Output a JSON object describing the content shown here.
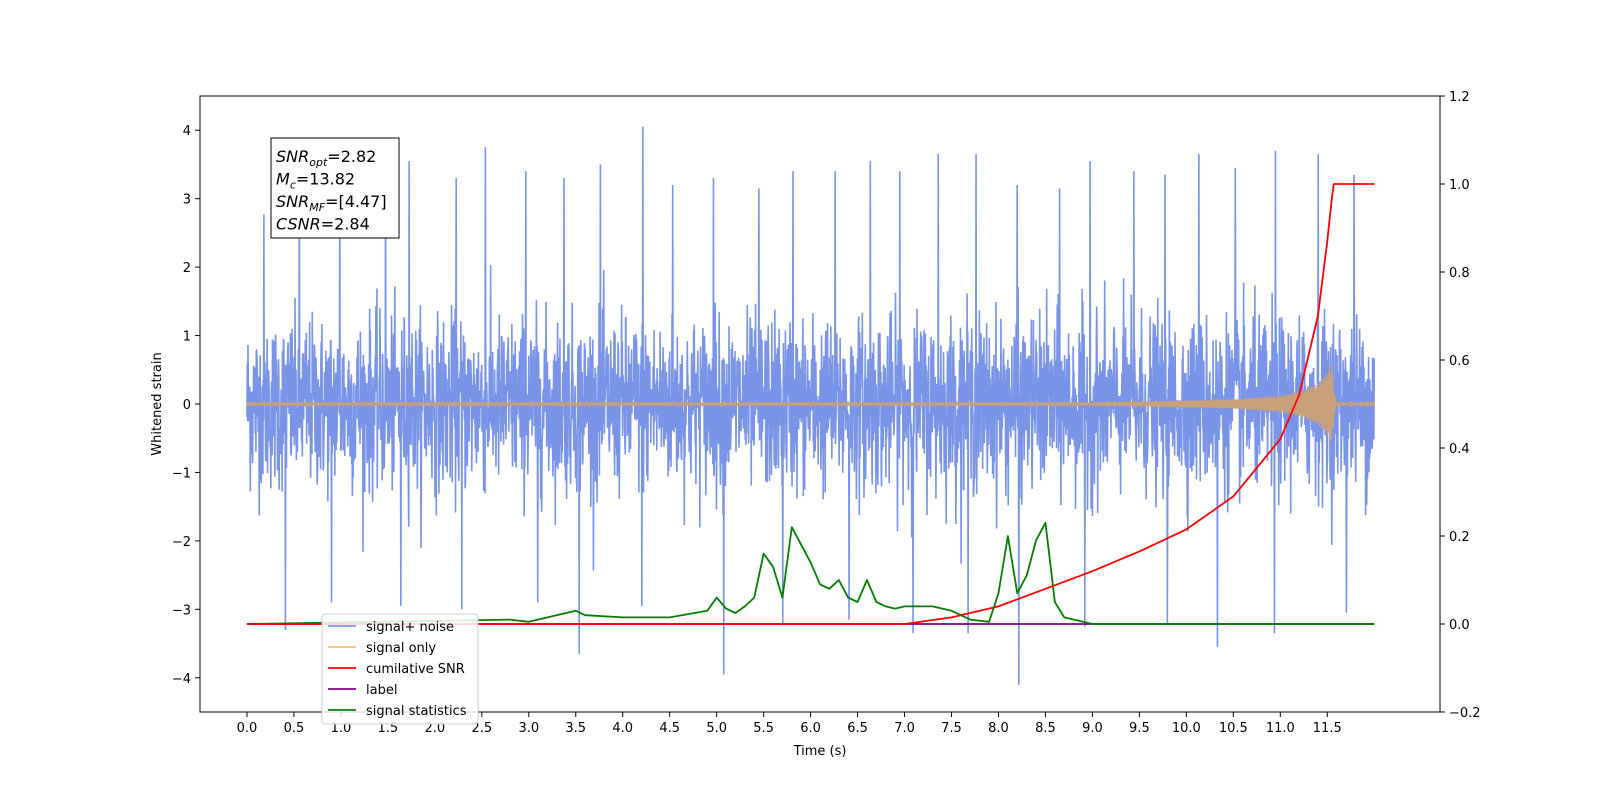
{
  "chart_data": {
    "type": "line",
    "xlabel": "Time (s)",
    "ylabel": "Whitened strain",
    "xlim": [
      -0.5,
      12.7
    ],
    "ylim": [
      -4.5,
      4.5
    ],
    "y2lim": [
      -0.2,
      1.2
    ],
    "x_ticks": [
      0.0,
      0.5,
      1.0,
      1.5,
      2.0,
      2.5,
      3.0,
      3.5,
      4.0,
      4.5,
      5.0,
      5.5,
      6.0,
      6.5,
      7.0,
      7.5,
      8.0,
      8.5,
      9.0,
      9.5,
      10.0,
      10.5,
      11.0,
      11.5
    ],
    "x_tick_labels": [
      "0.0",
      "0.5",
      "1.0",
      "1.5",
      "2.0",
      "2.5",
      "3.0",
      "3.5",
      "4.0",
      "4.5",
      "5.0",
      "5.5",
      "6.0",
      "6.5",
      "7.0",
      "7.5",
      "8.0",
      "8.5",
      "9.0",
      "9.5",
      "10.0",
      "10.5",
      "11.0",
      "11.5"
    ],
    "y_ticks": [
      -4,
      -3,
      -2,
      -1,
      0,
      1,
      2,
      3,
      4
    ],
    "y_tick_labels": [
      "−4",
      "−3",
      "−2",
      "−1",
      "0",
      "1",
      "2",
      "3",
      "4"
    ],
    "y2_ticks": [
      -0.2,
      0.0,
      0.2,
      0.4,
      0.6,
      0.8,
      1.0,
      1.2
    ],
    "y2_tick_labels": [
      "−0.2",
      "0.0",
      "0.2",
      "0.4",
      "0.6",
      "0.8",
      "1.0",
      "1.2"
    ],
    "grid": false,
    "legend_position": "lower-left",
    "annotation": {
      "lines": [
        {
          "base": "SNR",
          "sub": "opt",
          "rest": "=2.82"
        },
        {
          "base": "M",
          "sub": "c",
          "rest": "=13.82"
        },
        {
          "base": "SNR",
          "sub": "MF",
          "rest": "=[4.47]"
        },
        {
          "base": "CSNR",
          "sub": "",
          "rest": "=2.84"
        }
      ]
    },
    "series": [
      {
        "name": "signal+ noise",
        "color": "#7994e6",
        "axis": "left",
        "x_range": [
          0.0,
          12.0
        ],
        "envelope": {
          "upper_typical": 1.8,
          "lower_typical": -1.8,
          "spikes_up": [
            2.77,
            3.35,
            3.1,
            3.5,
            3.55,
            3.3,
            3.75,
            3.4,
            3.3,
            3.5,
            4.05,
            3.2,
            3.3,
            3.15,
            3.4,
            3.4,
            3.55,
            3.4,
            3.65,
            3.65,
            3.2,
            3.15,
            3.55,
            3.4,
            3.35,
            3.65,
            3.45,
            3.7,
            3.65,
            3.35
          ],
          "spikes_down": [
            -3.3,
            -2.9,
            -2.95,
            -3.0,
            -2.9,
            -3.65,
            -2.95,
            -3.95,
            -3.2,
            -3.15,
            -3.35,
            -3.35,
            -4.1,
            -3.25,
            -3.2,
            -3.55,
            -3.35,
            -3.05
          ]
        }
      },
      {
        "name": "signal only",
        "color": "#ffbf6e",
        "axis": "left",
        "x": [
          0.0,
          9.0,
          10.0,
          10.5,
          11.0,
          11.2,
          11.4,
          11.5,
          11.55,
          11.57,
          11.6,
          12.0
        ],
        "amplitude": [
          0.02,
          0.02,
          0.05,
          0.07,
          0.12,
          0.18,
          0.3,
          0.45,
          0.6,
          0.2,
          0.02,
          0.01
        ]
      },
      {
        "name": "cumilative SNR",
        "color": "#ff0000",
        "axis": "right",
        "x": [
          0.0,
          7.0,
          7.5,
          8.0,
          8.5,
          9.0,
          9.5,
          10.0,
          10.5,
          11.0,
          11.2,
          11.4,
          11.5,
          11.55,
          11.57,
          12.0
        ],
        "y": [
          0.0,
          0.0,
          0.015,
          0.04,
          0.08,
          0.12,
          0.165,
          0.215,
          0.29,
          0.42,
          0.52,
          0.7,
          0.87,
          0.97,
          1.0,
          1.0
        ]
      },
      {
        "name": "label",
        "color": "#800080",
        "axis": "right",
        "x": [
          0.0,
          12.0
        ],
        "y": [
          0.0,
          0.0
        ]
      },
      {
        "name": "signal statistics",
        "color": "#008000",
        "axis": "right",
        "x": [
          0.0,
          2.8,
          3.0,
          3.5,
          3.6,
          4.0,
          4.5,
          4.9,
          5.0,
          5.1,
          5.2,
          5.3,
          5.4,
          5.5,
          5.6,
          5.7,
          5.8,
          5.9,
          6.0,
          6.1,
          6.2,
          6.3,
          6.4,
          6.5,
          6.6,
          6.7,
          6.8,
          6.9,
          7.0,
          7.3,
          7.5,
          7.7,
          7.9,
          8.0,
          8.1,
          8.2,
          8.3,
          8.4,
          8.5,
          8.6,
          8.7,
          9.0,
          9.5,
          10.0,
          12.0
        ],
        "y": [
          0.0,
          0.01,
          0.005,
          0.03,
          0.02,
          0.015,
          0.015,
          0.03,
          0.06,
          0.035,
          0.025,
          0.04,
          0.06,
          0.16,
          0.13,
          0.06,
          0.22,
          0.18,
          0.14,
          0.09,
          0.08,
          0.1,
          0.06,
          0.05,
          0.1,
          0.05,
          0.04,
          0.035,
          0.04,
          0.04,
          0.03,
          0.01,
          0.005,
          0.07,
          0.2,
          0.07,
          0.11,
          0.19,
          0.23,
          0.05,
          0.015,
          0.0,
          0.0,
          0.0,
          0.0
        ]
      }
    ]
  }
}
